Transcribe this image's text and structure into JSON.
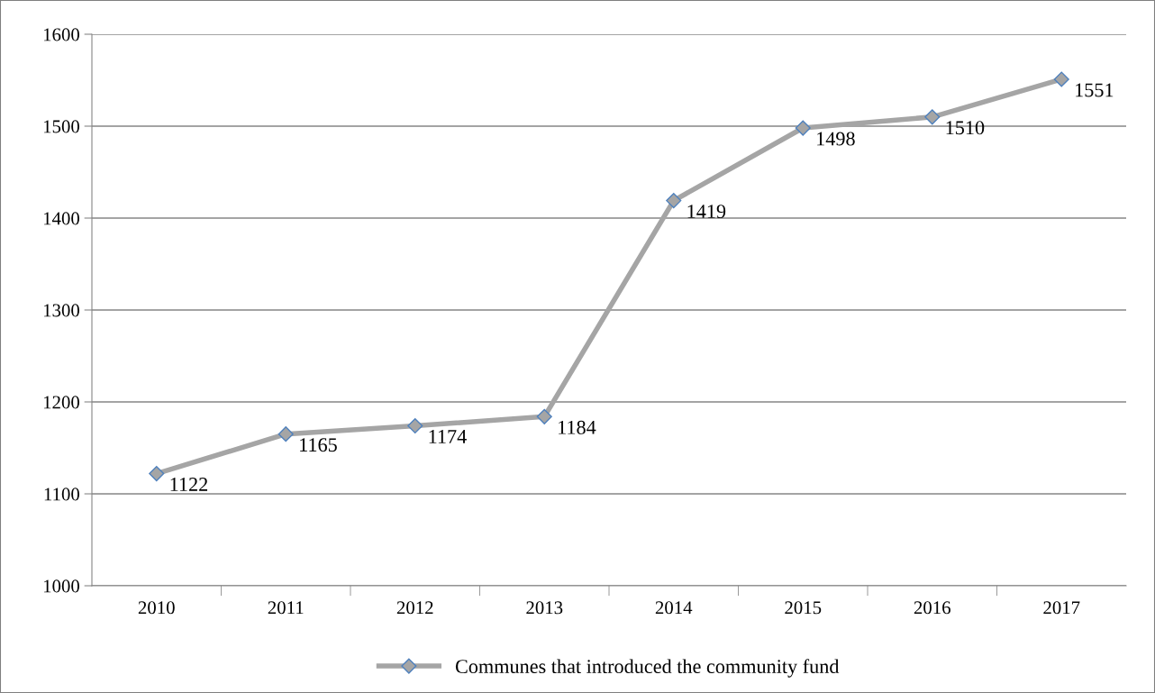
{
  "chart_data": {
    "type": "line",
    "categories": [
      "2010",
      "2011",
      "2012",
      "2013",
      "2014",
      "2015",
      "2016",
      "2017"
    ],
    "series": [
      {
        "name": "Communes that introduced the community fund",
        "color": "#a5a5a5",
        "values": [
          1122,
          1165,
          1174,
          1184,
          1419,
          1498,
          1510,
          1551
        ]
      }
    ],
    "ylim": [
      1000,
      1600
    ],
    "yticks": [
      1000,
      1100,
      1200,
      1300,
      1400,
      1500,
      1600
    ],
    "grid": "y",
    "legend": "bottom",
    "marker": "diamond",
    "line_style": "solid",
    "data_labels": true
  }
}
